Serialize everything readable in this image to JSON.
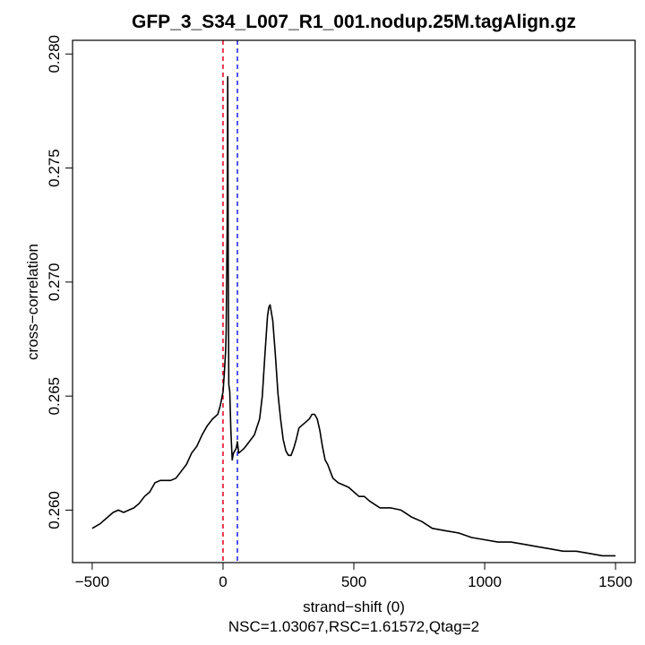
{
  "chart_data": {
    "type": "line",
    "title": "GFP_3_S34_L007_R1_001.nodup.25M.tagAlign.gz",
    "xlabel": "strand−shift (0)",
    "ylabel": "cross−correlation",
    "subtitle": "NSC=1.03067,RSC=1.61572,Qtag=2",
    "xlim": [
      -575,
      1575
    ],
    "ylim": [
      0.2577,
      0.2806
    ],
    "xticks": [
      -500,
      0,
      500,
      1000,
      1500
    ],
    "xtick_labels": [
      "−500",
      "0",
      "500",
      "1000",
      "1500"
    ],
    "yticks": [
      0.26,
      0.265,
      0.27,
      0.275,
      0.28
    ],
    "ytick_labels": [
      "0.260",
      "0.265",
      "0.270",
      "0.275",
      "0.280"
    ],
    "grid": false,
    "colors": {
      "line": "#000000",
      "red_marker": "#e8001c",
      "blue_marker": "#1c1ce8"
    },
    "vlines": [
      {
        "x": 0,
        "color": "#e8001c",
        "style": "dashed"
      },
      {
        "x": 55,
        "color": "#1c1ce8",
        "style": "dashed"
      }
    ],
    "series": [
      {
        "x": [
          -500,
          -470,
          -440,
          -420,
          -400,
          -380,
          -360,
          -340,
          -320,
          -300,
          -280,
          -260,
          -240,
          -220,
          -200,
          -180,
          -160,
          -140,
          -120,
          -100,
          -80,
          -60,
          -40,
          -20,
          -10,
          0,
          5,
          10,
          12,
          14,
          16,
          18,
          20,
          22,
          26,
          30,
          35,
          40,
          50,
          55,
          60,
          80,
          100,
          120,
          140,
          150,
          160,
          170,
          175,
          180,
          190,
          200,
          210,
          220,
          230,
          240,
          250,
          260,
          270,
          280,
          290,
          300,
          310,
          320,
          330,
          340,
          350,
          360,
          370,
          380,
          390,
          400,
          410,
          420,
          440,
          460,
          480,
          500,
          520,
          540,
          560,
          600,
          640,
          680,
          720,
          760,
          800,
          850,
          900,
          950,
          1000,
          1050,
          1100,
          1150,
          1200,
          1250,
          1300,
          1350,
          1400,
          1450,
          1500
        ],
        "y": [
          0.2592,
          0.2594,
          0.2597,
          0.2599,
          0.26,
          0.2599,
          0.26,
          0.2601,
          0.2603,
          0.2606,
          0.2608,
          0.2612,
          0.2613,
          0.2613,
          0.2613,
          0.2614,
          0.2617,
          0.262,
          0.2625,
          0.2628,
          0.2633,
          0.2637,
          0.264,
          0.2642,
          0.2646,
          0.2652,
          0.266,
          0.267,
          0.2679,
          0.27,
          0.2725,
          0.279,
          0.2705,
          0.2655,
          0.2652,
          0.2635,
          0.2622,
          0.2625,
          0.2627,
          0.263,
          0.2625,
          0.2627,
          0.263,
          0.2633,
          0.264,
          0.265,
          0.2668,
          0.2685,
          0.2689,
          0.269,
          0.2683,
          0.2668,
          0.2651,
          0.264,
          0.2631,
          0.2626,
          0.2624,
          0.2624,
          0.2627,
          0.2631,
          0.2636,
          0.2637,
          0.2638,
          0.2639,
          0.264,
          0.2642,
          0.2642,
          0.264,
          0.2635,
          0.2628,
          0.2622,
          0.262,
          0.2617,
          0.2614,
          0.2612,
          0.2611,
          0.261,
          0.2608,
          0.2606,
          0.2606,
          0.2604,
          0.2601,
          0.2601,
          0.26,
          0.2597,
          0.2595,
          0.2592,
          0.2591,
          0.259,
          0.2588,
          0.2587,
          0.2586,
          0.2586,
          0.2585,
          0.2584,
          0.2583,
          0.2582,
          0.2582,
          0.2581,
          0.258,
          0.258
        ]
      }
    ]
  }
}
